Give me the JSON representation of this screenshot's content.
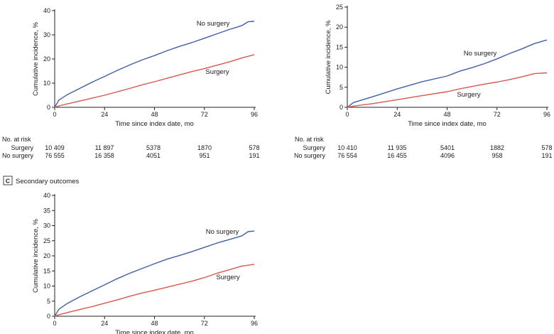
{
  "colors": {
    "no_surgery": "#3f5fa6",
    "surgery": "#d9574f",
    "axis": "#222222"
  },
  "chart_data": [
    {
      "type": "line",
      "panel_letter": "",
      "panel_title": "",
      "xlabel": "Time since index date, mo",
      "ylabel": "Cumulative incidence, %",
      "xlim": [
        0,
        96
      ],
      "ylim": [
        0,
        40
      ],
      "xticks": [
        "0",
        "24",
        "48",
        "72",
        "96"
      ],
      "yticks": [
        "0",
        "10",
        "20",
        "30",
        "40"
      ],
      "series": [
        {
          "name": "No surgery",
          "color": "#3f5fa6",
          "x": [
            0,
            2,
            6,
            12,
            18,
            24,
            30,
            36,
            42,
            48,
            54,
            60,
            66,
            72,
            78,
            84,
            90,
            93,
            96
          ],
          "y": [
            0,
            3,
            5.2,
            7.8,
            10.4,
            12.8,
            15.2,
            17.5,
            19.6,
            21.4,
            23.4,
            25.2,
            26.8,
            28.6,
            30.4,
            32.2,
            33.8,
            35.4,
            35.6
          ]
        },
        {
          "name": "Surgery",
          "color": "#d9574f",
          "x": [
            0,
            2,
            6,
            12,
            18,
            24,
            30,
            36,
            42,
            48,
            54,
            60,
            66,
            72,
            78,
            84,
            90,
            96
          ],
          "y": [
            0,
            0.6,
            1.4,
            2.6,
            3.8,
            5.0,
            6.4,
            7.8,
            9.3,
            10.6,
            12.0,
            13.4,
            14.8,
            16.0,
            17.4,
            18.8,
            20.4,
            21.8
          ]
        }
      ],
      "risk_table": {
        "heading": "No. at risk",
        "rows": [
          {
            "label": "Surgery",
            "values": [
              "10 409",
              "11 897",
              "5378",
              "1870",
              "578"
            ]
          },
          {
            "label": "No surgery",
            "values": [
              "76 555",
              "16 358",
              "4051",
              "951",
              "191"
            ]
          }
        ]
      }
    },
    {
      "type": "line",
      "panel_letter": "",
      "panel_title": "",
      "xlabel": "Time since index date, mo",
      "ylabel": "Cumulative incidence, %",
      "xlim": [
        0,
        96
      ],
      "ylim": [
        0,
        25
      ],
      "xticks": [
        "0",
        "24",
        "48",
        "72",
        "96"
      ],
      "yticks": [
        "0",
        "5",
        "10",
        "15",
        "20",
        "25"
      ],
      "series": [
        {
          "name": "No surgery",
          "color": "#3f5fa6",
          "x": [
            0,
            3,
            12,
            24,
            36,
            48,
            54,
            60,
            66,
            72,
            78,
            84,
            90,
            96
          ],
          "y": [
            0,
            1.2,
            2.6,
            4.6,
            6.4,
            7.8,
            9.0,
            9.9,
            10.9,
            12.1,
            13.4,
            14.6,
            15.9,
            16.8
          ]
        },
        {
          "name": "Surgery",
          "color": "#d9574f",
          "x": [
            0,
            3,
            12,
            24,
            36,
            48,
            54,
            60,
            66,
            72,
            78,
            84,
            90,
            96
          ],
          "y": [
            0,
            0.3,
            0.9,
            1.9,
            2.9,
            3.9,
            4.6,
            5.2,
            5.8,
            6.3,
            6.9,
            7.6,
            8.4,
            8.6
          ]
        }
      ],
      "risk_table": {
        "heading": "No. at risk",
        "rows": [
          {
            "label": "Surgery",
            "values": [
              "10 410",
              "11 935",
              "5401",
              "1882",
              "578"
            ]
          },
          {
            "label": "No surgery",
            "values": [
              "76 554",
              "16 455",
              "4096",
              "958",
              "191"
            ]
          }
        ]
      }
    },
    {
      "type": "line",
      "panel_letter": "C",
      "panel_title": "Secondary outcomes",
      "xlabel": "Time since index date, mo",
      "ylabel": "Cumulative incidence, %",
      "xlim": [
        0,
        96
      ],
      "ylim": [
        0,
        40
      ],
      "xticks": [
        "0",
        "24",
        "48",
        "72",
        "96"
      ],
      "yticks": [
        "0",
        "5",
        "10",
        "15",
        "20",
        "25",
        "30",
        "35",
        "40"
      ],
      "series": [
        {
          "name": "No surgery",
          "color": "#3f5fa6",
          "x": [
            0,
            2,
            6,
            12,
            18,
            24,
            30,
            36,
            42,
            48,
            54,
            60,
            66,
            72,
            78,
            84,
            90,
            93,
            96
          ],
          "y": [
            0,
            2.3,
            4.2,
            6.4,
            8.4,
            10.4,
            12.4,
            14.2,
            15.8,
            17.4,
            18.9,
            20.1,
            21.4,
            22.8,
            24.2,
            25.4,
            26.6,
            28.0,
            28.2
          ]
        },
        {
          "name": "Surgery",
          "color": "#d9574f",
          "x": [
            0,
            2,
            6,
            12,
            18,
            24,
            30,
            36,
            42,
            48,
            54,
            60,
            66,
            72,
            78,
            84,
            90,
            96
          ],
          "y": [
            0,
            0.5,
            1.2,
            2.2,
            3.2,
            4.3,
            5.4,
            6.6,
            7.7,
            8.6,
            9.6,
            10.6,
            11.6,
            12.8,
            14.2,
            15.4,
            16.6,
            17.2
          ]
        }
      ],
      "risk_table": null
    }
  ]
}
